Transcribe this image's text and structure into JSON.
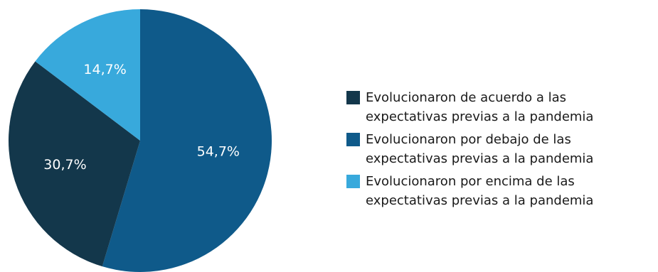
{
  "chart_data": {
    "type": "pie",
    "title": "",
    "slices": [
      {
        "label": "54,7%",
        "value": 54.7,
        "color": "#0f5a8a",
        "legend_line1": "Evolucionaron por debajo de las",
        "legend_line2": "expectativas previas a la pandemia"
      },
      {
        "label": "30,7%",
        "value": 30.7,
        "color": "#13374b",
        "legend_line1": "Evolucionaron de acuerdo a las",
        "legend_line2": "expectativas previas a la pandemia"
      },
      {
        "label": "14,7%",
        "value": 14.7,
        "color": "#38a9dc",
        "legend_line1": "Evolucionaron por encima de las",
        "legend_line2": "expectativas previas a la pandemia"
      }
    ],
    "legend": {
      "placement": "right",
      "order": [
        1,
        0,
        2
      ]
    }
  }
}
